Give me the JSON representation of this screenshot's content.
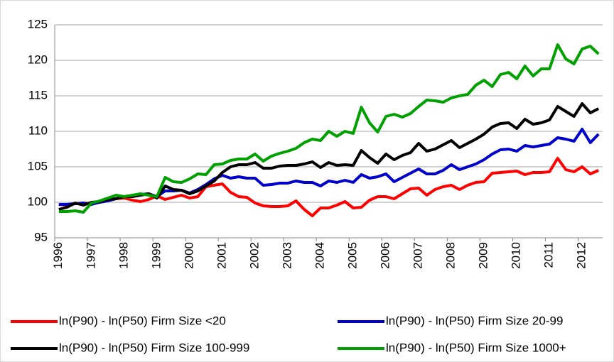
{
  "chart_data": {
    "type": "line",
    "categories": [
      "1996",
      null,
      null,
      null,
      "1997",
      null,
      null,
      null,
      "1998",
      null,
      null,
      null,
      "1999",
      null,
      null,
      null,
      "2000",
      null,
      null,
      null,
      "2001",
      null,
      null,
      null,
      "2002",
      null,
      null,
      null,
      "2003",
      null,
      null,
      null,
      "2004",
      null,
      null,
      null,
      "2005",
      null,
      null,
      null,
      "2006",
      null,
      null,
      null,
      "2007",
      null,
      null,
      null,
      "2008",
      null,
      null,
      null,
      "2009",
      null,
      null,
      null,
      "2010",
      null,
      null,
      null,
      "2011",
      null,
      null,
      null,
      "2012",
      null,
      null
    ],
    "series": [
      {
        "name": "ln(P90) - ln(P50) Firm Size <20",
        "color": "#ff0000",
        "values": [
          99.7,
          99.6,
          99.8,
          99.9,
          99.8,
          100.0,
          100.3,
          100.5,
          100.6,
          100.3,
          100.1,
          100.4,
          100.9,
          100.4,
          100.7,
          101.0,
          100.6,
          100.8,
          102.2,
          102.4,
          102.6,
          101.4,
          100.8,
          100.7,
          99.9,
          99.5,
          99.4,
          99.4,
          99.5,
          100.2,
          99.0,
          98.1,
          99.2,
          99.2,
          99.6,
          100.1,
          99.2,
          99.3,
          100.3,
          100.8,
          100.8,
          100.5,
          101.2,
          101.9,
          102.0,
          101.0,
          101.8,
          102.2,
          102.4,
          101.8,
          102.4,
          102.8,
          102.9,
          104.1,
          104.2,
          104.3,
          104.4,
          103.9,
          104.2,
          104.2,
          104.3,
          106.2,
          104.6,
          104.3,
          105.0,
          104.0,
          104.5
        ]
      },
      {
        "name": "ln(P90) - ln(P50) Firm Size 20-99",
        "color": "#0000cc",
        "values": [
          99.7,
          99.7,
          99.8,
          99.9,
          99.7,
          100.0,
          100.2,
          100.5,
          100.8,
          100.9,
          101.1,
          101.2,
          100.8,
          101.6,
          101.6,
          101.7,
          101.3,
          101.8,
          102.5,
          103.3,
          103.8,
          103.4,
          103.6,
          103.4,
          103.4,
          102.4,
          102.5,
          102.7,
          102.7,
          103.0,
          102.8,
          102.8,
          102.3,
          103.0,
          102.8,
          103.1,
          102.8,
          103.9,
          103.4,
          103.6,
          104.0,
          102.9,
          103.5,
          104.1,
          104.7,
          104.0,
          104.0,
          104.5,
          105.3,
          104.6,
          105.0,
          105.4,
          106.0,
          106.8,
          107.4,
          107.5,
          107.2,
          108.0,
          107.8,
          108.0,
          108.2,
          109.1,
          108.9,
          108.6,
          110.3,
          108.4,
          109.6
        ]
      },
      {
        "name": "ln(P90) - ln(P50) Firm Size 100-999",
        "color": "#000000",
        "values": [
          99.0,
          99.3,
          99.9,
          99.6,
          100.0,
          100.1,
          100.4,
          100.5,
          100.8,
          100.8,
          101.0,
          101.2,
          100.6,
          102.3,
          101.8,
          101.7,
          101.2,
          101.6,
          102.3,
          103.0,
          104.2,
          105.0,
          105.3,
          105.3,
          105.6,
          104.8,
          104.8,
          105.1,
          105.2,
          105.2,
          105.4,
          105.7,
          104.9,
          105.6,
          105.2,
          105.3,
          105.2,
          107.3,
          106.3,
          105.5,
          106.8,
          106.0,
          106.6,
          107.0,
          108.3,
          107.2,
          107.5,
          108.1,
          108.7,
          107.7,
          108.3,
          108.9,
          109.6,
          110.6,
          111.1,
          111.2,
          110.4,
          111.7,
          111.0,
          111.2,
          111.6,
          113.5,
          112.8,
          112.1,
          113.9,
          112.6,
          113.2
        ]
      },
      {
        "name": "ln(P90) - ln(P50) Firm Size 1000+",
        "color": "#00a000",
        "values": [
          98.7,
          98.7,
          98.8,
          98.6,
          99.9,
          100.2,
          100.6,
          101.0,
          100.8,
          101.0,
          101.2,
          101.0,
          100.8,
          103.5,
          102.9,
          102.8,
          103.3,
          104.0,
          103.9,
          105.3,
          105.4,
          105.9,
          106.1,
          106.1,
          106.8,
          105.8,
          106.5,
          106.9,
          107.2,
          107.6,
          108.4,
          108.9,
          108.7,
          110.0,
          109.3,
          110.0,
          109.7,
          113.4,
          111.2,
          109.9,
          112.1,
          112.4,
          112.0,
          112.5,
          113.5,
          114.4,
          114.3,
          114.1,
          114.7,
          115.0,
          115.2,
          116.5,
          117.2,
          116.3,
          118.0,
          118.3,
          117.4,
          119.2,
          117.8,
          118.8,
          118.8,
          122.2,
          120.2,
          119.5,
          121.6,
          122.0,
          120.9
        ]
      }
    ],
    "ylim": [
      95,
      125
    ],
    "yticks": [
      95,
      100,
      105,
      110,
      115,
      120,
      125
    ],
    "grid": true
  }
}
